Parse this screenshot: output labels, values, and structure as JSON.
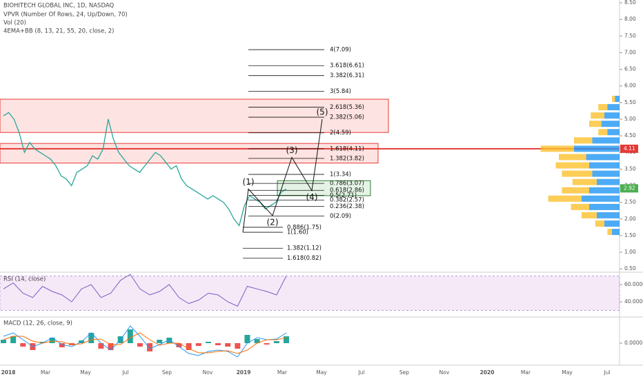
{
  "header": {
    "title": "BIOHITECH GLOBAL INC, 1D, NASDAQ",
    "indicators": [
      "VPVR (Number Of Rows, 24, Up/Down, 70)",
      "Vol (20)",
      "4EMA+BB (8, 13, 21, 55, 20, close, 2)"
    ]
  },
  "price_axis": {
    "ticks": [
      {
        "value": 8.5,
        "label": "8.50"
      },
      {
        "value": 8,
        "label": "8.00"
      },
      {
        "value": 7.5,
        "label": "7.50"
      },
      {
        "value": 7,
        "label": "7.00"
      },
      {
        "value": 6.5,
        "label": "6.50"
      },
      {
        "value": 6,
        "label": "6.00"
      },
      {
        "value": 5.5,
        "label": "5.50"
      },
      {
        "value": 5,
        "label": "5.00"
      },
      {
        "value": 4.5,
        "label": "4.50"
      },
      {
        "value": 4,
        "label": "4.00"
      },
      {
        "value": 3.5,
        "label": "3.50"
      },
      {
        "value": 3,
        "label": "3.00"
      },
      {
        "value": 2.5,
        "label": "2.50"
      },
      {
        "value": 2,
        "label": "2.00"
      },
      {
        "value": 1.5,
        "label": "1.50"
      },
      {
        "value": 1,
        "label": "1.00"
      },
      {
        "value": 0.5,
        "label": "0.50"
      }
    ]
  },
  "resistance_line": 4.11,
  "last_price": 2.92,
  "price_closes": [
    5.1,
    5.2,
    5.0,
    4.6,
    4.0,
    4.3,
    4.1,
    4.0,
    3.9,
    3.8,
    3.6,
    3.3,
    3.2,
    3.0,
    3.4,
    3.5,
    3.6,
    3.9,
    3.8,
    4.1,
    5.0,
    4.4,
    4.0,
    3.8,
    3.6,
    3.5,
    3.4,
    3.6,
    3.8,
    4.0,
    3.9,
    3.7,
    3.5,
    3.6,
    3.2,
    3.0,
    2.9,
    2.8,
    2.7,
    2.6,
    2.7,
    2.6,
    2.5,
    2.3,
    2.0,
    1.8,
    2.4,
    2.7,
    2.6,
    2.5,
    2.3,
    2.4,
    2.5,
    2.8,
    2.9
  ],
  "zones": [
    {
      "low": 4.6,
      "high": 5.6
    },
    {
      "low": 3.68,
      "high": 4.27
    }
  ],
  "target_zone": {
    "low": 2.7,
    "high": 3.15
  },
  "fib_upper": [
    {
      "label": "4(7.09)",
      "price": 7.09
    },
    {
      "label": "3.618(6.61)",
      "price": 6.61
    },
    {
      "label": "3.382(6.31)",
      "price": 6.31
    },
    {
      "label": "3(5.84)",
      "price": 5.84
    },
    {
      "label": "2.618(5.36)",
      "price": 5.36
    },
    {
      "label": "2.382(5.06)",
      "price": 5.06
    },
    {
      "label": "2(4.59)",
      "price": 4.59
    },
    {
      "label": "1.618(4.11)",
      "price": 4.11
    },
    {
      "label": "1.382(3.82)",
      "price": 3.82
    },
    {
      "label": "1(3.34)",
      "price": 3.34
    },
    {
      "label": "0.786(3.07)",
      "price": 3.07
    },
    {
      "label": "0.618(2.86)",
      "price": 2.86
    },
    {
      "label": "0.5(2.71)",
      "price": 2.71
    },
    {
      "label": "0.382(2.57)",
      "price": 2.57
    },
    {
      "label": "0.236(2.38)",
      "price": 2.38
    },
    {
      "label": "0(2.09)",
      "price": 2.09
    }
  ],
  "fib_lower": [
    {
      "label": "0.886(1.75)",
      "price": 1.75
    },
    {
      "label": "1(1.60)",
      "price": 1.6
    },
    {
      "label": "1.382(1.12)",
      "price": 1.12
    },
    {
      "label": "1.618(0.82)",
      "price": 0.82
    }
  ],
  "wave_start": 1.6,
  "waves": [
    {
      "label": "(1)",
      "price": 2.9
    },
    {
      "label": "(2)",
      "price": 2.1
    },
    {
      "label": "(3)",
      "price": 3.85
    },
    {
      "label": "(4)",
      "price": 2.85
    },
    {
      "label": "(5)",
      "price": 5.0
    }
  ],
  "volume_profile": {
    "prices": [
      5.6,
      5.35,
      5.1,
      4.85,
      4.6,
      4.35,
      4.1,
      3.85,
      3.6,
      3.35,
      3.1,
      2.85,
      2.6,
      2.35,
      2.1,
      1.85,
      1.6
    ],
    "up": [
      3,
      8,
      10,
      12,
      8,
      18,
      30,
      22,
      20,
      18,
      15,
      20,
      25,
      20,
      15,
      10,
      5
    ],
    "down": [
      2,
      6,
      9,
      8,
      6,
      12,
      22,
      18,
      22,
      20,
      16,
      18,
      22,
      12,
      10,
      6,
      3
    ]
  },
  "rsi": {
    "label": "RSI (14, close)",
    "ticks": [
      {
        "value": 60,
        "label": "60.0000"
      },
      {
        "value": 40,
        "label": "40.0000"
      }
    ],
    "band": [
      70,
      30
    ],
    "values": [
      55,
      62,
      50,
      45,
      58,
      52,
      48,
      40,
      55,
      60,
      45,
      50,
      65,
      72,
      55,
      48,
      52,
      60,
      45,
      38,
      42,
      50,
      48,
      40,
      35,
      58,
      55,
      52,
      48,
      70
    ]
  },
  "macd": {
    "label": "MACD (12, 26, close, 9)",
    "ticks": [
      {
        "value": 0,
        "label": "0.0000"
      }
    ],
    "histogram": [
      0.05,
      0.1,
      -0.05,
      -0.1,
      0.02,
      0.08,
      -0.06,
      -0.03,
      0.04,
      0.15,
      -0.08,
      -0.1,
      0.1,
      0.2,
      -0.05,
      -0.12,
      0.05,
      0.08,
      -0.06,
      -0.1,
      -0.04,
      0.02,
      -0.03,
      -0.05,
      -0.08,
      0.12,
      0.06,
      -0.02,
      0.03,
      0.1
    ],
    "macd": [
      0.1,
      0.15,
      0.05,
      -0.05,
      0.0,
      0.08,
      -0.02,
      -0.05,
      0.02,
      0.15,
      0.0,
      -0.1,
      0.05,
      0.25,
      0.1,
      -0.08,
      -0.02,
      0.05,
      -0.05,
      -0.15,
      -0.18,
      -0.12,
      -0.1,
      -0.12,
      -0.2,
      0.0,
      0.08,
      0.05,
      0.06,
      0.15
    ],
    "signal": [
      0.05,
      0.1,
      0.1,
      0.03,
      0.0,
      0.03,
      0.02,
      -0.02,
      -0.01,
      0.05,
      0.06,
      -0.02,
      -0.02,
      0.08,
      0.15,
      0.05,
      -0.03,
      0.0,
      0.0,
      -0.08,
      -0.14,
      -0.14,
      -0.12,
      -0.11,
      -0.15,
      -0.1,
      0.0,
      0.05,
      0.05,
      0.08
    ]
  },
  "time_axis": [
    "2018",
    "Mar",
    "May",
    "Jul",
    "Sep",
    "Nov",
    "2019",
    "Mar",
    "May",
    "Jul",
    "Sep",
    "Nov",
    "2020",
    "Mar",
    "May",
    "Jul"
  ]
}
